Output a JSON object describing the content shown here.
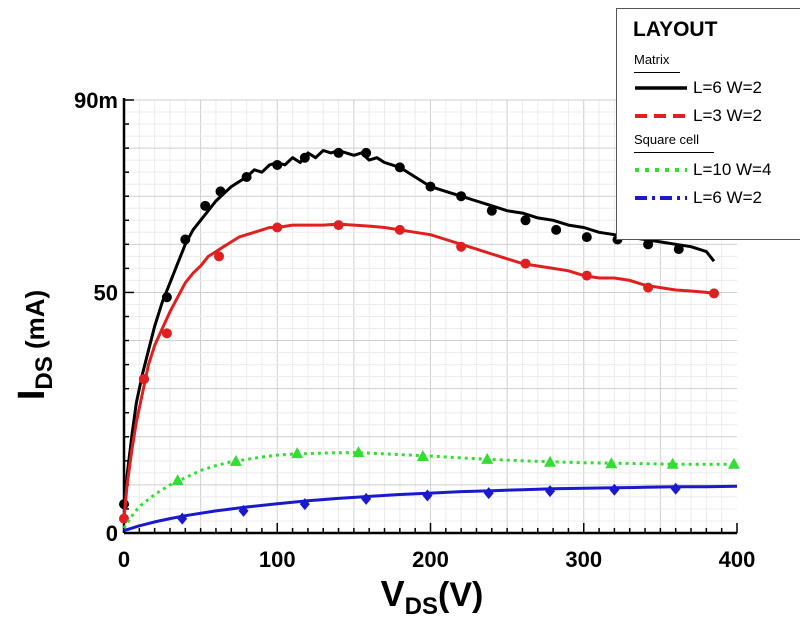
{
  "chart_data": {
    "type": "line",
    "xlabel_main": "V",
    "xlabel_sub": "DS",
    "xlabel_tail": "(V)",
    "ylabel_main": "I",
    "ylabel_sub": "DS",
    "ylabel_tail": " (mA)",
    "xlim": [
      0,
      400
    ],
    "ylim": [
      0,
      90
    ],
    "x_ticks": [
      {
        "value": 0,
        "label": "0"
      },
      {
        "value": 100,
        "label": "100"
      },
      {
        "value": 200,
        "label": "200"
      },
      {
        "value": 300,
        "label": "300"
      },
      {
        "value": 400,
        "label": "400"
      }
    ],
    "y_ticks": [
      {
        "value": 0,
        "label": "0"
      },
      {
        "value": 50,
        "label": "50"
      },
      {
        "value": 90,
        "label": "90m"
      }
    ],
    "grid": true,
    "legend_position": "top-right",
    "legend": {
      "title": "LAYOUT",
      "groups": [
        {
          "label": "Matrix",
          "entries": [
            0,
            1
          ]
        },
        {
          "label": "Square cell",
          "entries": [
            2,
            3
          ]
        }
      ]
    },
    "series": [
      {
        "name": "L=6 W=2",
        "color": "#000000",
        "dash": "solid",
        "marker": "circle",
        "x": [
          0,
          2,
          5,
          8,
          12,
          16,
          20,
          25,
          30,
          35,
          40,
          45,
          50,
          55,
          60,
          65,
          70,
          75,
          80,
          85,
          90,
          95,
          100,
          105,
          110,
          115,
          120,
          125,
          130,
          135,
          140,
          145,
          150,
          155,
          160,
          165,
          170,
          175,
          180,
          190,
          200,
          210,
          220,
          230,
          240,
          250,
          260,
          270,
          280,
          290,
          300,
          310,
          320,
          330,
          340,
          350,
          360,
          370,
          380,
          385
        ],
        "y": [
          5,
          12,
          20,
          27,
          33,
          38,
          43,
          48,
          52,
          56,
          60,
          63,
          65,
          67,
          69,
          70.5,
          72,
          73,
          74,
          75.5,
          75,
          76.5,
          77,
          76.5,
          78,
          77,
          79,
          78,
          79.5,
          79,
          79.5,
          79,
          78.5,
          79,
          77.5,
          78,
          77,
          76.5,
          76,
          74,
          72,
          71,
          70,
          69,
          68,
          67,
          66.5,
          65.5,
          65,
          64,
          63.5,
          62.5,
          62,
          61.5,
          61,
          60.5,
          60,
          59.5,
          58.5,
          56.5
        ],
        "markers_x": [
          0,
          13,
          28,
          40,
          53,
          63,
          80,
          100,
          118,
          140,
          158,
          180,
          200,
          220,
          240,
          262,
          282,
          302,
          322,
          342,
          362
        ],
        "markers_y": [
          6,
          32,
          49,
          61,
          68,
          71,
          74,
          76.5,
          78,
          79,
          79,
          76,
          72,
          70,
          67,
          65,
          63,
          61.5,
          61,
          60,
          59
        ]
      },
      {
        "name": "L=3 W=2",
        "color": "#e02020",
        "dash": "dash",
        "marker": "circle",
        "x": [
          0,
          2,
          5,
          8,
          12,
          16,
          20,
          25,
          30,
          35,
          40,
          45,
          50,
          55,
          60,
          65,
          70,
          75,
          80,
          85,
          90,
          95,
          100,
          110,
          120,
          130,
          140,
          150,
          160,
          170,
          180,
          190,
          200,
          210,
          220,
          230,
          240,
          250,
          260,
          270,
          280,
          290,
          300,
          310,
          320,
          330,
          340,
          350,
          360,
          370,
          380,
          385
        ],
        "y": [
          3,
          10,
          17,
          23,
          29,
          35,
          39,
          42.5,
          46,
          49,
          52,
          54,
          55.5,
          57.5,
          58.5,
          59.5,
          60.5,
          61.5,
          62,
          62.5,
          63,
          63.5,
          63.5,
          64,
          64,
          64,
          64.2,
          64,
          63.8,
          63.5,
          63,
          62.5,
          62,
          61,
          60,
          59,
          58,
          57,
          56,
          55.5,
          55,
          54.5,
          53.5,
          53,
          53,
          52.5,
          51.5,
          51,
          50.5,
          50.3,
          50,
          49.8
        ],
        "markers_x": [
          0,
          13,
          28,
          62,
          100,
          140,
          180,
          220,
          262,
          302,
          342,
          385
        ],
        "markers_y": [
          3,
          32,
          41.5,
          57.5,
          63.5,
          64,
          63,
          59.5,
          56,
          53.5,
          51,
          49.8
        ]
      },
      {
        "name": "L=10 W=4",
        "color": "#33dd33",
        "dash": "dot",
        "marker": "triangle",
        "x": [
          0,
          5,
          10,
          20,
          30,
          40,
          50,
          60,
          70,
          80,
          90,
          100,
          110,
          120,
          130,
          140,
          150,
          160,
          180,
          200,
          220,
          240,
          260,
          280,
          300,
          320,
          340,
          360,
          380,
          400
        ],
        "y": [
          1,
          3.5,
          5.5,
          8,
          10,
          11.5,
          13,
          14,
          14.8,
          15.3,
          15.8,
          16.2,
          16.4,
          16.5,
          16.6,
          16.7,
          16.7,
          16.6,
          16.3,
          16,
          15.6,
          15.3,
          15,
          14.8,
          14.6,
          14.5,
          14.4,
          14.3,
          14.3,
          14.3
        ],
        "markers_x": [
          35,
          73,
          113,
          153,
          195,
          237,
          278,
          318,
          358,
          398
        ],
        "markers_y": [
          11,
          15,
          16.6,
          16.8,
          16,
          15.4,
          14.8,
          14.5,
          14.4,
          14.4
        ]
      },
      {
        "name": "L=6 W=2",
        "color": "#1a1acc",
        "dash": "dashdot",
        "marker": "diamond",
        "x": [
          0,
          5,
          10,
          20,
          30,
          40,
          60,
          80,
          100,
          120,
          140,
          160,
          180,
          200,
          220,
          240,
          260,
          280,
          300,
          320,
          340,
          360,
          380,
          400
        ],
        "y": [
          0.5,
          1,
          1.5,
          2.3,
          3,
          3.6,
          4.6,
          5.4,
          6.1,
          6.7,
          7.2,
          7.6,
          8,
          8.3,
          8.6,
          8.8,
          9,
          9.2,
          9.3,
          9.4,
          9.5,
          9.6,
          9.6,
          9.7
        ],
        "markers_x": [
          38,
          78,
          118,
          158,
          198,
          238,
          278,
          320,
          360
        ],
        "markers_y": [
          3,
          4.6,
          6,
          7.1,
          7.8,
          8.3,
          8.7,
          9,
          9.2
        ]
      }
    ]
  }
}
